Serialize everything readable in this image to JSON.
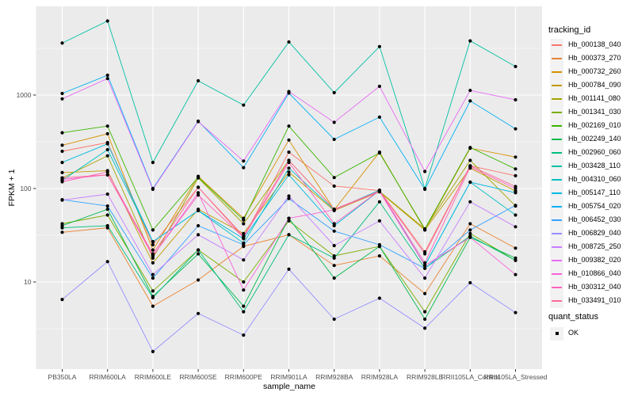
{
  "chart_data": {
    "type": "line",
    "xlabel": "sample_name",
    "ylabel": "FPKM + 1",
    "y_scale": "log10",
    "y_ticks": [
      10,
      100,
      1000
    ],
    "y_minor_breaks_log10": [
      0.5,
      1.5,
      2.5,
      3.5
    ],
    "ylim_log10": [
      0.1,
      3.95
    ],
    "grid": "on",
    "panel_bg": "#EBEBEB",
    "grid_color": "#FFFFFF",
    "point_color": "#000000",
    "legend_position": "right",
    "categories": [
      "PB350LA",
      "RRIM600LA",
      "RRIM600LE",
      "RRIM600SE",
      "RRIM600PE",
      "RRIM901LA",
      "RRIM928BA",
      "RRIM928LA",
      "RRIM928LE",
      "RRII105LA_Control",
      "RRII105LA_Stressed"
    ],
    "series": [
      {
        "name": "Hb_000138_040",
        "color": "#F8766D",
        "values": [
          250,
          310,
          25,
          103,
          30,
          245,
          106,
          95,
          21,
          175,
          137
        ]
      },
      {
        "name": "Hb_000373_270",
        "color": "#EA8331",
        "values": [
          34,
          38,
          5.5,
          10.5,
          24,
          32,
          15,
          19,
          7.5,
          42,
          23
        ]
      },
      {
        "name": "Hb_000732_260",
        "color": "#D89000",
        "values": [
          290,
          385,
          22,
          135,
          48,
          330,
          59,
          245,
          36,
          270,
          217
        ]
      },
      {
        "name": "Hb_000784_090",
        "color": "#C09B00",
        "values": [
          148,
          155,
          16,
          60,
          33,
          150,
          58,
          92,
          36,
          165,
          94
        ]
      },
      {
        "name": "Hb_001141_080",
        "color": "#A3A500",
        "values": [
          130,
          224,
          18,
          130,
          42,
          200,
          60,
          93,
          37,
          200,
          65
        ]
      },
      {
        "name": "Hb_001341_030",
        "color": "#7CAE00",
        "values": [
          42,
          52,
          8,
          22,
          10,
          45,
          19,
          24,
          4.8,
          33,
          17
        ]
      },
      {
        "name": "Hb_002169_010",
        "color": "#39B600",
        "values": [
          395,
          465,
          36,
          132,
          46,
          465,
          131,
          240,
          37,
          275,
          162
        ]
      },
      {
        "name": "Hb_002249_140",
        "color": "#00BB4E",
        "values": [
          40,
          60,
          7,
          20,
          5.5,
          48,
          11,
          24,
          4,
          30,
          18
        ]
      },
      {
        "name": "Hb_002960_060",
        "color": "#00BF7D",
        "values": [
          38,
          40,
          6.8,
          22,
          4.8,
          32,
          18,
          72,
          14,
          31,
          17
        ]
      },
      {
        "name": "Hb_003428_110",
        "color": "#00C1A3",
        "values": [
          3600,
          6200,
          190,
          1420,
          780,
          3700,
          1060,
          3300,
          100,
          3800,
          2020
        ]
      },
      {
        "name": "Hb_004310_060",
        "color": "#00BFC4",
        "values": [
          122,
          260,
          27,
          58,
          26,
          165,
          59,
          96,
          15,
          117,
          52
        ]
      },
      {
        "name": "Hb_005147_110",
        "color": "#00BAE0",
        "values": [
          190,
          300,
          27,
          58,
          29,
          140,
          40,
          95,
          15,
          117,
          90
        ]
      },
      {
        "name": "Hb_005754_020",
        "color": "#00B0F6",
        "values": [
          1040,
          1630,
          100,
          525,
          167,
          1050,
          335,
          580,
          98,
          865,
          435
        ]
      },
      {
        "name": "Hb_006452_030",
        "color": "#35A2FF",
        "values": [
          76,
          65,
          11,
          40,
          25,
          78,
          35,
          25,
          14,
          36,
          66
        ]
      },
      {
        "name": "Hb_006829_040",
        "color": "#9590FF",
        "values": [
          6.5,
          16.5,
          1.8,
          4.6,
          2.7,
          13.7,
          4.0,
          6.7,
          3.2,
          9.8,
          4.7
        ]
      },
      {
        "name": "Hb_008725_250",
        "color": "#C77CFF",
        "values": [
          75,
          87,
          12,
          32,
          17.2,
          83,
          24.5,
          45,
          11,
          72,
          39
        ]
      },
      {
        "name": "Hb_009382_020",
        "color": "#E76BF3",
        "values": [
          910,
          1500,
          98,
          520,
          197,
          1090,
          510,
          1240,
          152,
          1120,
          890
        ]
      },
      {
        "name": "Hb_010866_040",
        "color": "#FA62DB",
        "values": [
          125,
          140,
          19,
          90,
          8.2,
          48,
          59,
          93,
          15,
          30,
          12
        ]
      },
      {
        "name": "Hb_030312_040",
        "color": "#FF62BC",
        "values": [
          118,
          150,
          19,
          85,
          30,
          190,
          42,
          95,
          16,
          170,
          100
        ]
      },
      {
        "name": "Hb_033491_010",
        "color": "#FF6A98",
        "values": [
          130,
          140,
          20,
          103,
          31,
          200,
          60,
          94,
          20,
          175,
          105
        ]
      }
    ],
    "legend": {
      "color_title": "tracking_id",
      "shape_title": "quant_status",
      "shape_items": [
        {
          "label": "OK"
        }
      ]
    }
  }
}
